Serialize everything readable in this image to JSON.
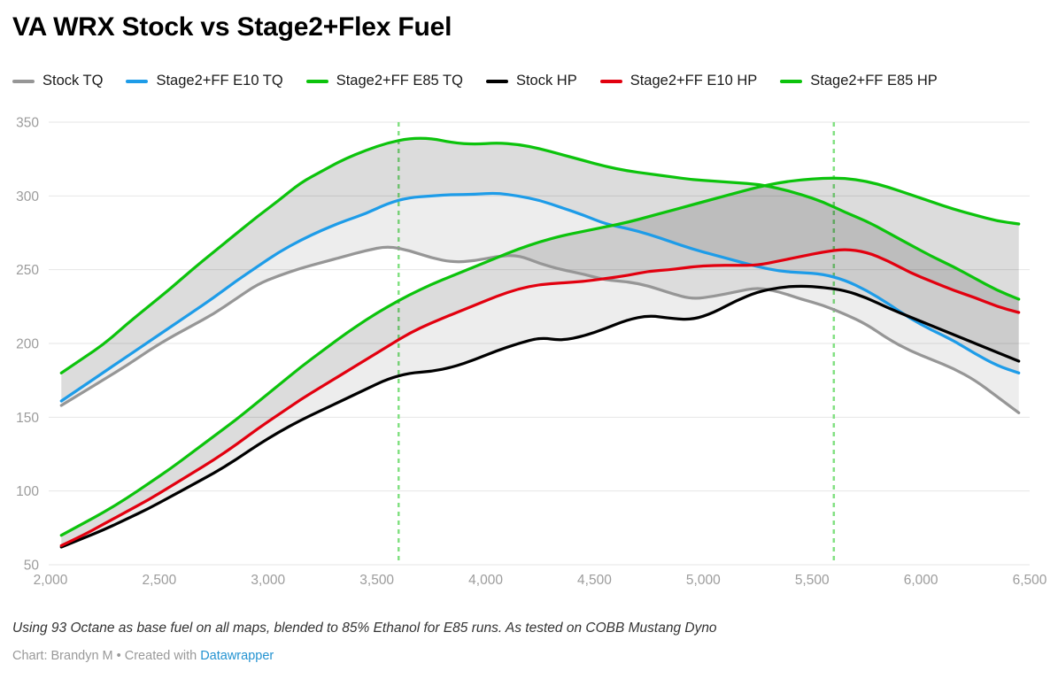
{
  "title": "VA WRX Stock vs Stage2+Flex Fuel",
  "legend": [
    {
      "label": "Stock TQ",
      "color": "#969696"
    },
    {
      "label": "Stage2+FF E10 TQ",
      "color": "#1e9ce8"
    },
    {
      "label": "Stage2+FF E85 TQ",
      "color": "#0cc30c"
    },
    {
      "label": "Stock HP",
      "color": "#000000"
    },
    {
      "label": "Stage2+FF E10 HP",
      "color": "#e2000f"
    },
    {
      "label": "Stage2+FF E85 HP",
      "color": "#0cc30c"
    }
  ],
  "footnote": "Using 93 Octane as base fuel on all maps, blended to 85% Ethanol for E85 runs. As tested on COBB Mustang Dyno",
  "credit": {
    "prefix": "Chart: Brandyn M • Created with ",
    "link": "Datawrapper"
  },
  "chart_data": {
    "type": "line",
    "title": "VA WRX Stock vs Stage2+Flex Fuel",
    "xlabel": "",
    "ylabel": "",
    "xlim": [
      2000,
      6500
    ],
    "ylim": [
      50,
      350
    ],
    "grid": "horizontal",
    "legend_position": "top",
    "x_ticks": {
      "values": [
        2000,
        2500,
        3000,
        3500,
        4000,
        4500,
        5000,
        5500,
        6000,
        6500
      ],
      "labels": [
        "2,000",
        "2,500",
        "3,000",
        "3,500",
        "4,000",
        "4,500",
        "5,000",
        "5,500",
        "6,000",
        "6,500"
      ]
    },
    "y_ticks": {
      "values": [
        50,
        100,
        150,
        200,
        250,
        300,
        350
      ],
      "labels": [
        "50",
        "100",
        "150",
        "200",
        "250",
        "300",
        "350"
      ]
    },
    "vline_markers": {
      "x": [
        3600,
        5600
      ],
      "color": "#82e082",
      "style": "dashed"
    },
    "band_fill": "rgba(0,0,0,0.07)",
    "bands": [
      {
        "lower": "Stock TQ",
        "upper": "Stage2+FF E85 TQ"
      },
      {
        "lower": "Stage2+FF E10 TQ",
        "upper": "Stage2+FF E85 TQ"
      },
      {
        "lower": "Stock HP",
        "upper": "Stage2+FF E85 HP"
      },
      {
        "lower": "Stage2+FF E10 HP",
        "upper": "Stage2+FF E85 HP"
      }
    ],
    "x": [
      2050,
      2150,
      2250,
      2350,
      2450,
      2550,
      2650,
      2750,
      2850,
      2950,
      3050,
      3150,
      3250,
      3350,
      3450,
      3550,
      3650,
      3750,
      3850,
      3950,
      4050,
      4150,
      4250,
      4350,
      4450,
      4550,
      4650,
      4750,
      4850,
      4950,
      5050,
      5150,
      5250,
      5350,
      5450,
      5550,
      5650,
      5750,
      5850,
      5950,
      6050,
      6150,
      6250,
      6350,
      6450
    ],
    "series": [
      {
        "name": "Stock TQ",
        "color": "#969696",
        "values": [
          158,
          167,
          176,
          185,
          195,
          204,
          212,
          220,
          230,
          240,
          246,
          251,
          255,
          259,
          263,
          266,
          263,
          258,
          255,
          256,
          259,
          260,
          254,
          250,
          247,
          243,
          242,
          239,
          234,
          230,
          232,
          235,
          238,
          235,
          230,
          226,
          220,
          213,
          203,
          195,
          189,
          183,
          175,
          164,
          153
        ]
      },
      {
        "name": "Stage2+FF E10 TQ",
        "color": "#1e9ce8",
        "values": [
          161,
          171,
          181,
          191,
          201,
          211,
          221,
          231,
          242,
          252,
          262,
          270,
          277,
          283,
          288,
          295,
          299,
          300,
          301,
          301,
          302,
          300,
          297,
          292,
          287,
          281,
          278,
          274,
          269,
          264,
          260,
          256,
          252,
          249,
          248,
          247,
          243,
          236,
          227,
          217,
          209,
          202,
          193,
          185,
          180
        ]
      },
      {
        "name": "Stage2+FF E85 TQ",
        "color": "#0cc30c",
        "values": [
          180,
          190,
          200,
          213,
          225,
          237,
          250,
          262,
          274,
          286,
          297,
          309,
          317,
          325,
          331,
          336,
          339,
          339,
          336,
          335,
          336,
          335,
          332,
          328,
          324,
          320,
          317,
          315,
          313,
          311,
          310,
          309,
          308,
          305,
          301,
          296,
          289,
          283,
          275,
          267,
          259,
          252,
          244,
          236,
          230
        ]
      },
      {
        "name": "Stock HP",
        "color": "#000000",
        "values": [
          62,
          68,
          74,
          81,
          88,
          96,
          104,
          112,
          121,
          131,
          140,
          148,
          155,
          162,
          169,
          176,
          180,
          181,
          184,
          189,
          195,
          200,
          204,
          202,
          205,
          210,
          216,
          219,
          217,
          216,
          221,
          229,
          235,
          238,
          239,
          238,
          236,
          231,
          224,
          218,
          212,
          206,
          200,
          194,
          188
        ]
      },
      {
        "name": "Stage2+FF E10 HP",
        "color": "#e2000f",
        "values": [
          63,
          70,
          78,
          86,
          94,
          103,
          112,
          121,
          131,
          142,
          152,
          162,
          171,
          180,
          189,
          198,
          207,
          214,
          220,
          226,
          232,
          237,
          240,
          241,
          242,
          244,
          246,
          249,
          250,
          252,
          253,
          253,
          253,
          256,
          259,
          262,
          264,
          262,
          256,
          248,
          242,
          236,
          231,
          225,
          221
        ]
      },
      {
        "name": "Stage2+FF E85 HP",
        "color": "#0cc30c",
        "values": [
          70,
          78,
          86,
          95,
          105,
          115,
          126,
          137,
          148,
          160,
          172,
          184,
          195,
          206,
          216,
          225,
          233,
          240,
          246,
          252,
          258,
          264,
          269,
          273,
          276,
          279,
          282,
          286,
          290,
          294,
          298,
          302,
          306,
          309,
          311,
          312,
          312,
          310,
          306,
          301,
          296,
          291,
          287,
          283,
          281
        ]
      }
    ]
  }
}
